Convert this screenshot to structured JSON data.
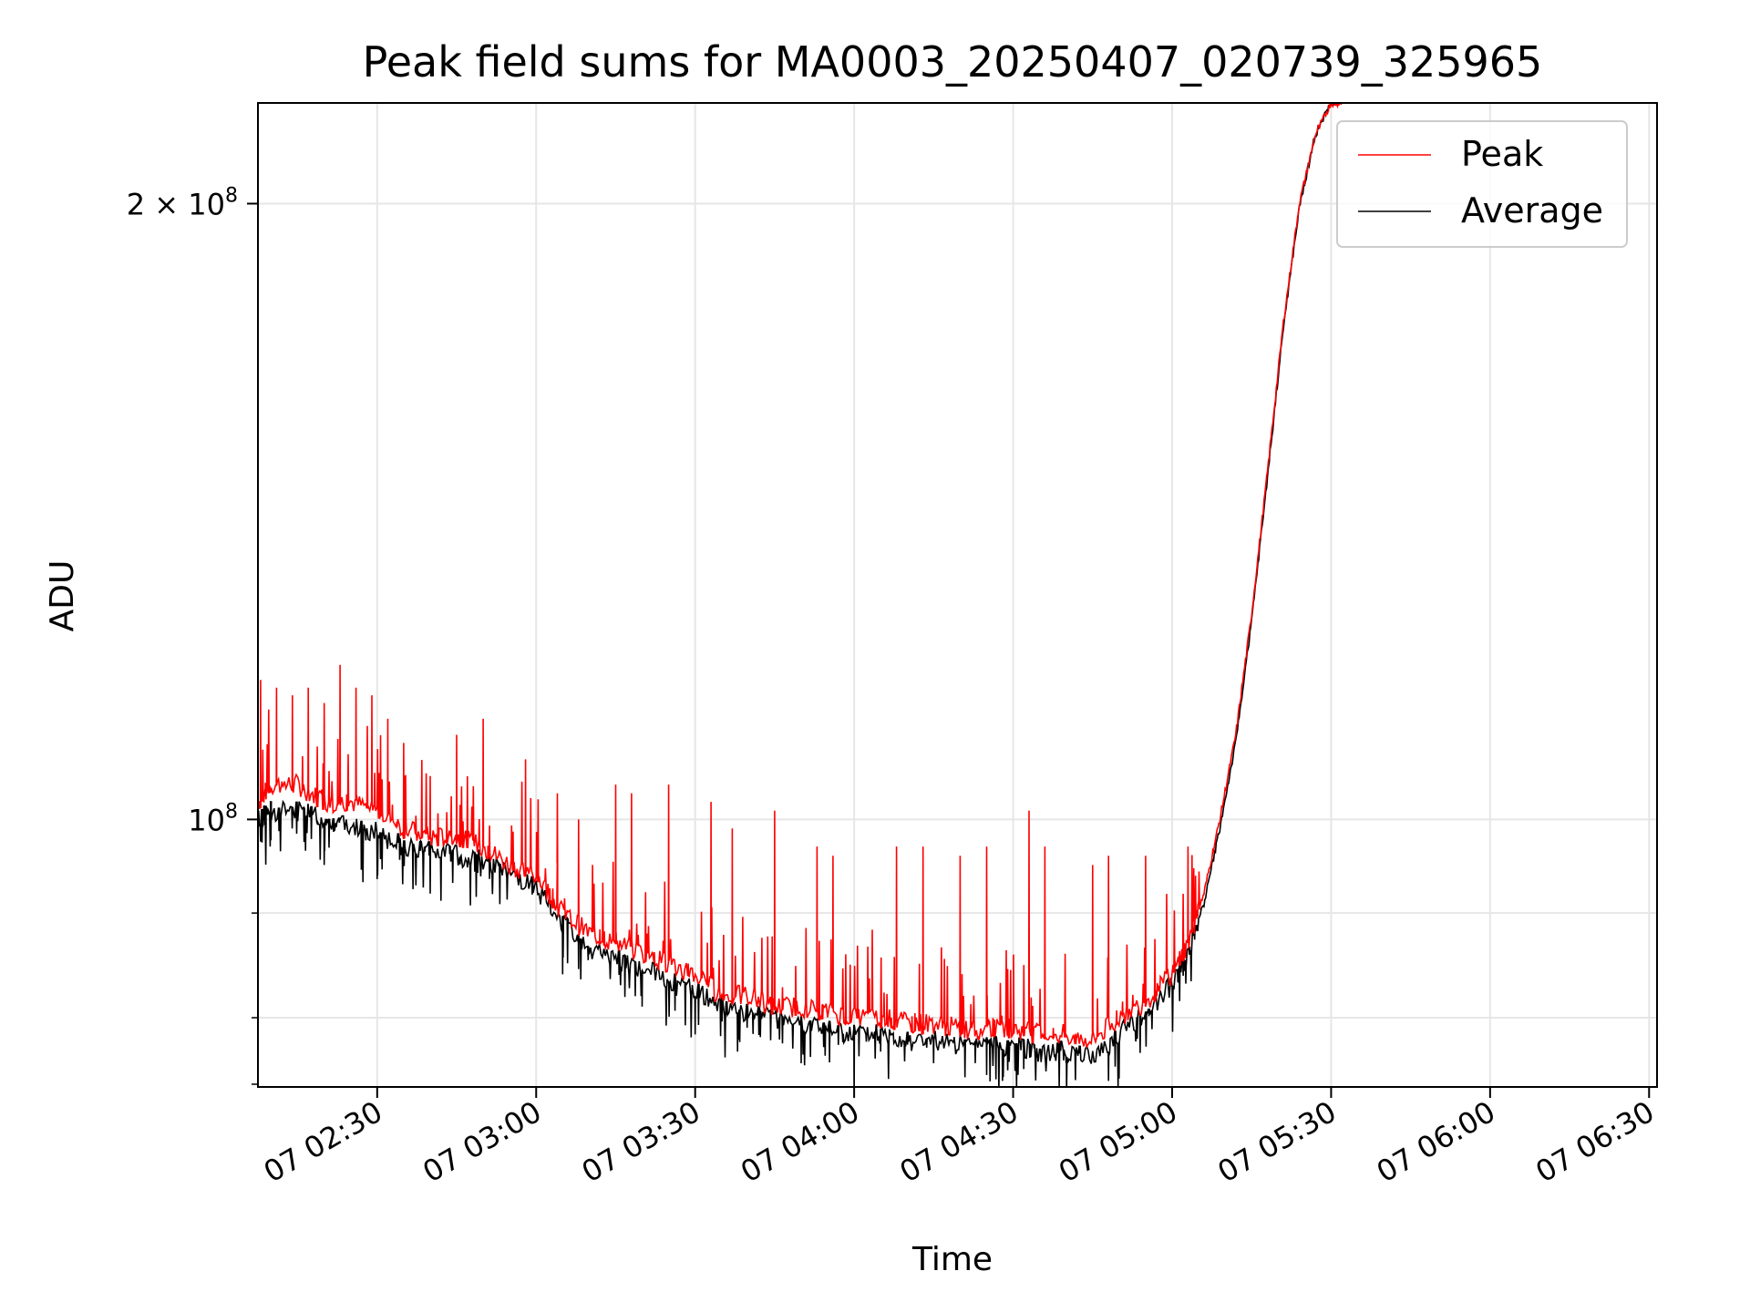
{
  "chart_data": {
    "type": "line",
    "title": "Peak field sums for MA0003_20250407_020739_325965",
    "xlabel": "Time",
    "ylabel": "ADU",
    "x_axis": {
      "unit": "time of day (HH:MM)",
      "range": [
        "02:07:30",
        "06:31:30"
      ],
      "ticks": [
        "02:30",
        "03:00",
        "03:30",
        "04:00",
        "04:30",
        "05:00",
        "05:30",
        "06:00",
        "06:30"
      ],
      "tick_labels": [
        "07 02:30",
        "07 03:00",
        "07 03:30",
        "07 04:00",
        "07 04:30",
        "07 05:00",
        "07 05:30",
        "07 06:00",
        "07 06:30"
      ]
    },
    "y_axis": {
      "scale": "log",
      "range": [
        74000000,
        224000000
      ],
      "major_ticks": [
        100000000,
        200000000
      ],
      "major_tick_labels": [
        {
          "base": "10",
          "exp": "8",
          "prefix": ""
        },
        {
          "base": "10",
          "exp": "8",
          "prefix": "2 × "
        }
      ],
      "minor_ticks": [
        80000000,
        90000000
      ]
    },
    "grid": true,
    "legend": {
      "position": "top-right"
    },
    "series": [
      {
        "name": "Peak",
        "color": "#ff0000",
        "points": [
          [
            "02:07:30",
            102000000
          ],
          [
            "02:10",
            104000000
          ],
          [
            "02:15",
            104000000
          ],
          [
            "02:20",
            102000000
          ],
          [
            "02:25",
            102000000
          ],
          [
            "02:30",
            101000000
          ],
          [
            "02:35",
            99000000
          ],
          [
            "02:40",
            98000000
          ],
          [
            "02:45",
            98000000
          ],
          [
            "02:50",
            97000000
          ],
          [
            "02:55",
            95000000
          ],
          [
            "03:00",
            94000000
          ],
          [
            "03:05",
            90000000
          ],
          [
            "03:10",
            88000000
          ],
          [
            "03:15",
            87000000
          ],
          [
            "03:20",
            86000000
          ],
          [
            "03:25",
            85000000
          ],
          [
            "03:30",
            84000000
          ],
          [
            "03:35",
            82000000
          ],
          [
            "03:40",
            82000000
          ],
          [
            "03:45",
            81000000
          ],
          [
            "03:50",
            81000000
          ],
          [
            "03:55",
            80500000
          ],
          [
            "04:00",
            80000000
          ],
          [
            "04:05",
            80000000
          ],
          [
            "04:10",
            79500000
          ],
          [
            "04:15",
            79500000
          ],
          [
            "04:20",
            79000000
          ],
          [
            "04:25",
            79000000
          ],
          [
            "04:30",
            79000000
          ],
          [
            "04:35",
            78500000
          ],
          [
            "04:40",
            78500000
          ],
          [
            "04:45",
            78000000
          ],
          [
            "04:50",
            80000000
          ],
          [
            "04:55",
            81500000
          ],
          [
            "05:00",
            84000000
          ],
          [
            "05:03",
            87000000
          ],
          [
            "05:06",
            92000000
          ],
          [
            "05:09",
            100000000
          ],
          [
            "05:12",
            110000000
          ],
          [
            "05:15",
            126000000
          ],
          [
            "05:18",
            148000000
          ],
          [
            "05:21",
            175000000
          ],
          [
            "05:24",
            200000000
          ],
          [
            "05:27",
            216000000
          ],
          [
            "05:30",
            224000000
          ],
          [
            "05:32",
            224000000
          ]
        ],
        "spikes": [
          [
            "02:08",
            117000000
          ],
          [
            "02:11",
            116000000
          ],
          [
            "02:14",
            115000000
          ],
          [
            "02:17",
            116000000
          ],
          [
            "02:20",
            114000000
          ],
          [
            "02:23",
            119000000
          ],
          [
            "02:26",
            116000000
          ],
          [
            "02:29",
            115000000
          ],
          [
            "02:32",
            112000000
          ],
          [
            "02:35",
            109000000
          ],
          [
            "02:40",
            105000000
          ],
          [
            "02:45",
            110000000
          ],
          [
            "02:50",
            112000000
          ],
          [
            "02:58",
            107000000
          ],
          [
            "03:04",
            103000000
          ],
          [
            "03:08",
            100000000
          ],
          [
            "03:15",
            104000000
          ],
          [
            "03:18",
            103000000
          ],
          [
            "03:25",
            104000000
          ],
          [
            "03:33",
            102000000
          ],
          [
            "03:37",
            99000000
          ],
          [
            "03:45",
            101000000
          ],
          [
            "03:53",
            97000000
          ],
          [
            "03:56",
            96000000
          ],
          [
            "04:08",
            97000000
          ],
          [
            "04:13",
            97000000
          ],
          [
            "04:20",
            96000000
          ],
          [
            "04:25",
            97000000
          ],
          [
            "04:33",
            101000000
          ],
          [
            "04:36",
            97000000
          ],
          [
            "04:45",
            95000000
          ],
          [
            "04:48",
            96000000
          ],
          [
            "04:55",
            96000000
          ],
          [
            "05:03",
            97000000
          ]
        ]
      },
      {
        "name": "Average",
        "color": "#000000",
        "points": [
          [
            "02:07:30",
            100000000
          ],
          [
            "02:10",
            101000000
          ],
          [
            "02:15",
            101000000
          ],
          [
            "02:20",
            100000000
          ],
          [
            "02:25",
            99500000
          ],
          [
            "02:30",
            98500000
          ],
          [
            "02:35",
            97000000
          ],
          [
            "02:40",
            96500000
          ],
          [
            "02:45",
            96000000
          ],
          [
            "02:50",
            95500000
          ],
          [
            "02:55",
            94000000
          ],
          [
            "03:00",
            92500000
          ],
          [
            "03:05",
            89000000
          ],
          [
            "03:10",
            86500000
          ],
          [
            "03:15",
            85500000
          ],
          [
            "03:20",
            84500000
          ],
          [
            "03:25",
            83500000
          ],
          [
            "03:30",
            82500000
          ],
          [
            "03:35",
            81000000
          ],
          [
            "03:40",
            80500000
          ],
          [
            "03:45",
            80000000
          ],
          [
            "03:50",
            79500000
          ],
          [
            "03:55",
            79000000
          ],
          [
            "04:00",
            78500000
          ],
          [
            "04:05",
            78500000
          ],
          [
            "04:10",
            78000000
          ],
          [
            "04:15",
            78000000
          ],
          [
            "04:20",
            77500000
          ],
          [
            "04:25",
            77500000
          ],
          [
            "04:30",
            77500000
          ],
          [
            "04:35",
            77000000
          ],
          [
            "04:40",
            77000000
          ],
          [
            "04:45",
            76500000
          ],
          [
            "04:50",
            78500000
          ],
          [
            "04:55",
            80500000
          ],
          [
            "05:00",
            83000000
          ],
          [
            "05:03",
            86000000
          ],
          [
            "05:06",
            91000000
          ],
          [
            "05:09",
            99000000
          ],
          [
            "05:12",
            109000000
          ],
          [
            "05:15",
            125000000
          ],
          [
            "05:18",
            147000000
          ],
          [
            "05:21",
            174000000
          ],
          [
            "05:24",
            199000000
          ],
          [
            "05:27",
            216000000
          ],
          [
            "05:30",
            224000000
          ],
          [
            "05:32",
            224000000
          ]
        ],
        "dips": [
          [
            "02:20",
            95000000
          ],
          [
            "02:27",
            94500000
          ],
          [
            "02:30",
            93500000
          ],
          [
            "02:40",
            92000000
          ],
          [
            "03:05",
            84000000
          ],
          [
            "03:08",
            84500000
          ],
          [
            "03:20",
            81000000
          ],
          [
            "03:30",
            78500000
          ],
          [
            "03:38",
            77000000
          ],
          [
            "03:50",
            76000000
          ],
          [
            "04:00",
            73000000
          ],
          [
            "04:05",
            77000000
          ],
          [
            "04:15",
            76000000
          ],
          [
            "04:25",
            75000000
          ],
          [
            "04:28",
            74500000
          ],
          [
            "04:32",
            75500000
          ],
          [
            "04:40",
            76000000
          ],
          [
            "04:48",
            74500000
          ],
          [
            "04:50",
            74700000
          ]
        ]
      }
    ]
  }
}
